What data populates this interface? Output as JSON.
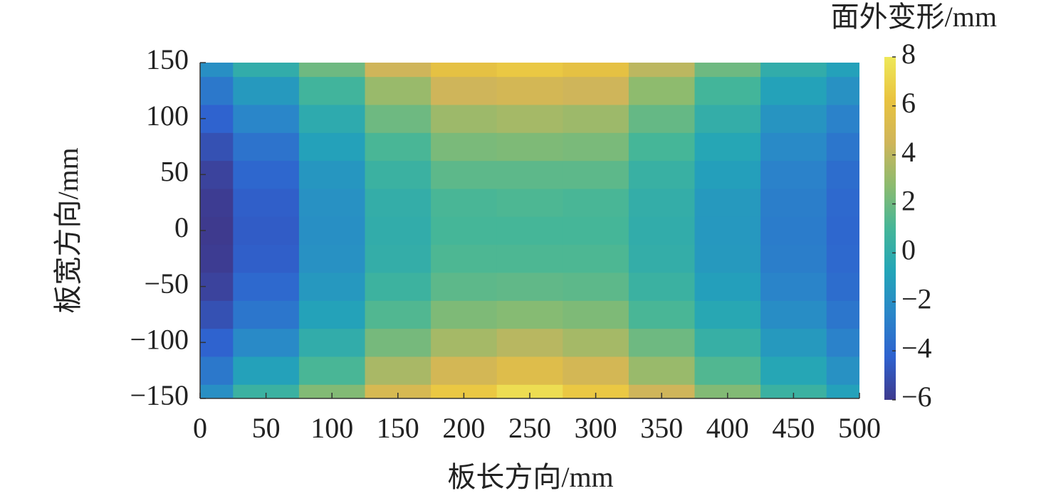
{
  "chart_data": {
    "type": "heatmap",
    "xlabel": "板长方向/mm",
    "ylabel": "板宽方向/mm",
    "colorbar_label": "面外变形/mm",
    "x": [
      0,
      50,
      100,
      150,
      200,
      250,
      300,
      350,
      400,
      450,
      500
    ],
    "y": [
      -150,
      -125,
      -100,
      -75,
      -50,
      -25,
      0,
      25,
      50,
      75,
      100,
      125,
      150
    ],
    "z": [
      [
        -2,
        0.5,
        2.5,
        5,
        6.5,
        7.5,
        6.5,
        4.5,
        2.5,
        0.5,
        -1
      ],
      [
        -3.2,
        -1.0,
        1.1,
        3.5,
        4.8,
        5.5,
        4.8,
        3.1,
        1.3,
        -0.6,
        -1.9
      ],
      [
        -4.2,
        -2.3,
        0.0,
        2.2,
        3.4,
        3.9,
        3.4,
        2.0,
        0.3,
        -1.4,
        -2.7
      ],
      [
        -5.0,
        -3.3,
        -0.9,
        1.3,
        2.4,
        2.6,
        2.4,
        1.1,
        -0.5,
        -2.1,
        -3.3
      ],
      [
        -5.6,
        -3.9,
        -1.5,
        0.6,
        1.6,
        1.7,
        1.6,
        0.5,
        -1.1,
        -2.6,
        -3.7
      ],
      [
        -5.9,
        -4.4,
        -1.9,
        0.1,
        1.2,
        1.2,
        1.2,
        0.1,
        -1.4,
        -2.9,
        -3.9
      ],
      [
        -6,
        -4.5,
        -2,
        0,
        1,
        1,
        1,
        0,
        -1.5,
        -3,
        -4
      ],
      [
        -5.9,
        -4.4,
        -1.9,
        0.1,
        1.1,
        1.2,
        1.1,
        0.1,
        -1.4,
        -2.9,
        -3.9
      ],
      [
        -5.6,
        -4.0,
        -1.6,
        0.5,
        1.6,
        1.6,
        1.6,
        0.4,
        -1.1,
        -2.7,
        -3.7
      ],
      [
        -5.0,
        -3.4,
        -1.0,
        1.1,
        2.3,
        2.4,
        2.3,
        1.0,
        -0.6,
        -2.3,
        -3.3
      ],
      [
        -4.2,
        -2.5,
        -0.2,
        2.0,
        3.2,
        3.4,
        3.2,
        1.8,
        0.1,
        -1.7,
        -2.7
      ],
      [
        -3.2,
        -1.4,
        0.8,
        3.1,
        4.5,
        4.8,
        4.5,
        2.8,
        0.9,
        -0.9,
        -1.9
      ],
      [
        -2,
        0,
        2,
        4.5,
        6,
        6.5,
        6,
        4,
        2,
        0,
        -1
      ]
    ],
    "xlim": [
      0,
      500
    ],
    "xticks": [
      0,
      50,
      100,
      150,
      200,
      250,
      300,
      350,
      400,
      450,
      500
    ],
    "ylim": [
      -150,
      150
    ],
    "yticks": [
      {
        "value": -150,
        "label": "−150"
      },
      {
        "value": -100,
        "label": "−100"
      },
      {
        "value": -50,
        "label": "−50"
      },
      0,
      50,
      100,
      150
    ],
    "zlim": [
      -6,
      8
    ],
    "zticks": [
      {
        "value": -6,
        "label": "−6"
      },
      {
        "value": -4,
        "label": "−4"
      },
      {
        "value": -2,
        "label": "−2"
      },
      0,
      2,
      4,
      6,
      8
    ],
    "colormap": [
      "#3e3a8e",
      "#2f62cf",
      "#2a86c9",
      "#23a5b8",
      "#45b698",
      "#8cbb6f",
      "#cfb55a",
      "#e9c33f",
      "#eee85a"
    ]
  }
}
